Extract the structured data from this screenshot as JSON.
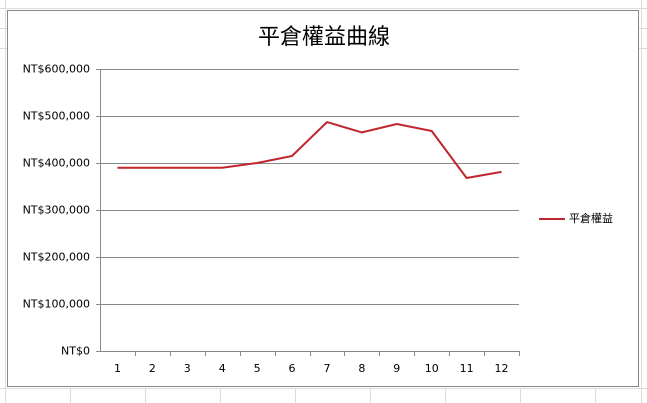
{
  "chart_data": {
    "type": "line",
    "title": "平倉權益曲線",
    "categories": [
      "1",
      "2",
      "3",
      "4",
      "5",
      "6",
      "7",
      "8",
      "9",
      "10",
      "11",
      "12"
    ],
    "series": [
      {
        "name": "平倉權益",
        "color": "#c0262d",
        "values": [
          390000,
          390000,
          390000,
          390000,
          400000,
          415000,
          487000,
          465000,
          483000,
          468000,
          368000,
          381000
        ]
      }
    ],
    "ylim": [
      0,
      600000
    ],
    "yticks": [
      {
        "value": 0,
        "label": "NT$0"
      },
      {
        "value": 100000,
        "label": "NT$100,000"
      },
      {
        "value": 200000,
        "label": "NT$200,000"
      },
      {
        "value": 300000,
        "label": "NT$300,000"
      },
      {
        "value": 400000,
        "label": "NT$400,000"
      },
      {
        "value": 500000,
        "label": "NT$500,000"
      },
      {
        "value": 600000,
        "label": "NT$600,000"
      }
    ],
    "grid": true,
    "legend": "right"
  }
}
